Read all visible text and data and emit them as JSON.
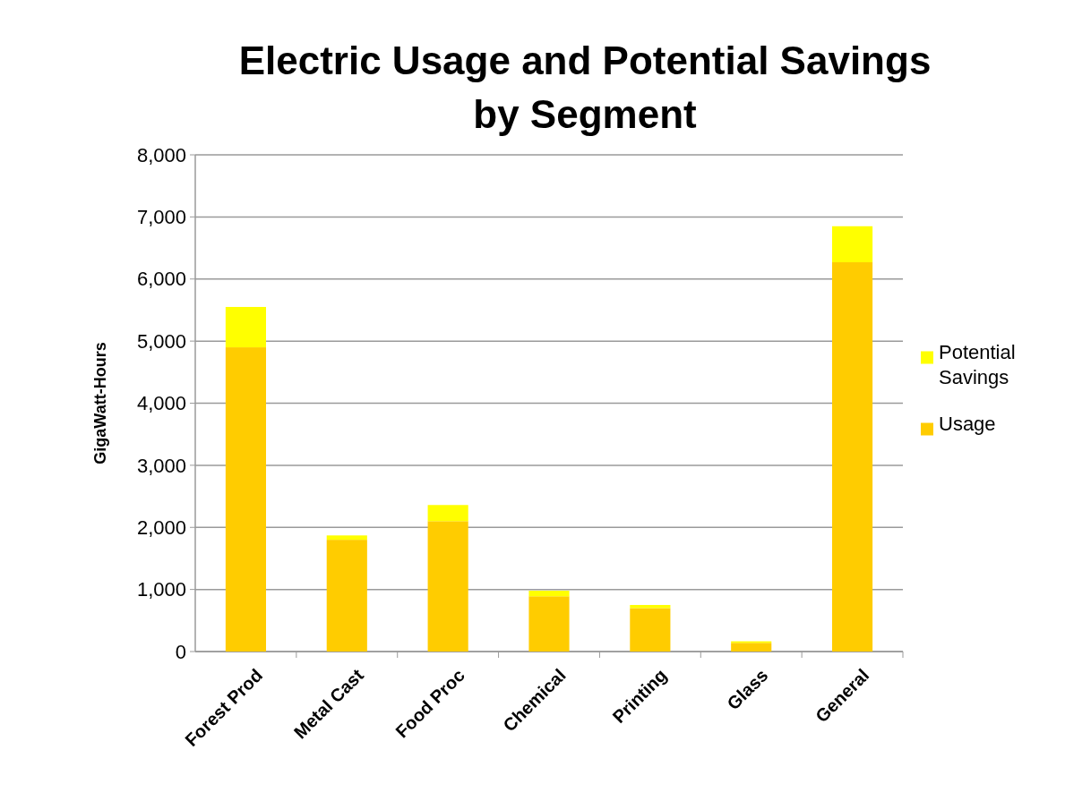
{
  "chart_data": {
    "type": "bar",
    "title": "Electric Usage and Potential Savings by Segment",
    "ylabel": "GigaWatt-Hours",
    "categories": [
      "Forest Prod",
      "Metal Cast",
      "Food Proc",
      "Chemical",
      "Printing",
      "Glass",
      "General"
    ],
    "stacked": true,
    "series": [
      {
        "name": "Usage",
        "color": "#ffcc00",
        "values": [
          4900,
          1800,
          2100,
          890,
          700,
          140,
          6270
        ]
      },
      {
        "name": "Potential Savings",
        "color": "#ffff00",
        "values": [
          650,
          70,
          260,
          90,
          50,
          25,
          580
        ]
      }
    ],
    "ylim": [
      0,
      8000
    ],
    "yticks": [
      {
        "value": 0,
        "label": "0"
      },
      {
        "value": 1000,
        "label": "1,000"
      },
      {
        "value": 2000,
        "label": "2,000"
      },
      {
        "value": 3000,
        "label": "3,000"
      },
      {
        "value": 4000,
        "label": "4,000"
      },
      {
        "value": 5000,
        "label": "5,000"
      },
      {
        "value": 6000,
        "label": "6,000"
      },
      {
        "value": 7000,
        "label": "7,000"
      },
      {
        "value": 8000,
        "label": "8,000"
      }
    ],
    "grid": "y",
    "legend": "right"
  }
}
